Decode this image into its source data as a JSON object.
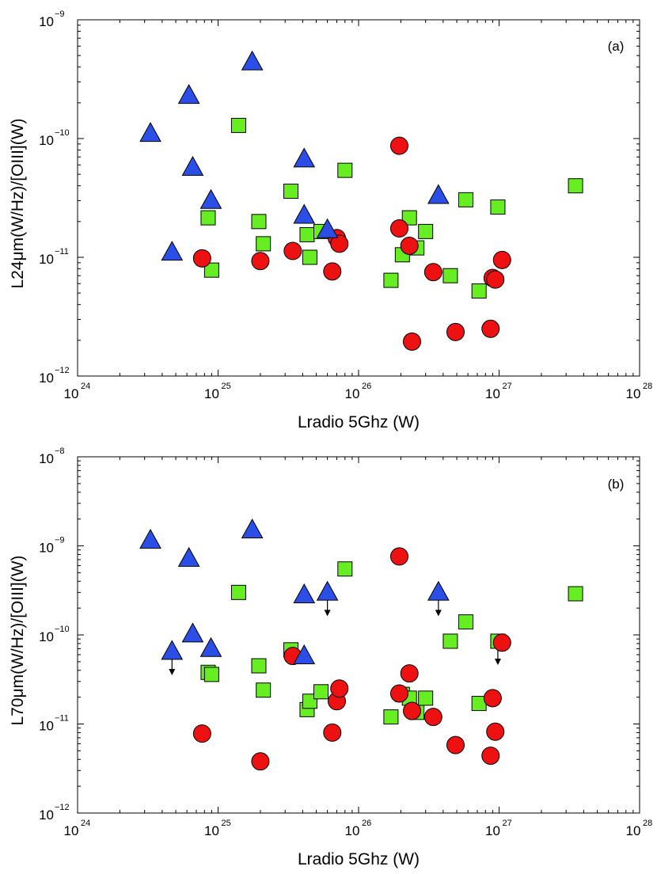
{
  "chart_data": [
    {
      "type": "scatter",
      "panel_label": "(a)",
      "xlabel": "Lradio 5Ghz (W)",
      "ylabel": "L24μm(W/Hz)/[OIII](W)",
      "xscale": "log",
      "yscale": "log",
      "xlim": [
        1e+24,
        1e+28
      ],
      "ylim": [
        1e-12,
        1e-09
      ],
      "xticks": [
        {
          "base": "10",
          "exp": "24",
          "v": 24
        },
        {
          "base": "10",
          "exp": "25",
          "v": 25
        },
        {
          "base": "10",
          "exp": "26",
          "v": 26
        },
        {
          "base": "10",
          "exp": "27",
          "v": 27
        },
        {
          "base": "10",
          "exp": "28",
          "v": 28
        }
      ],
      "yticks": [
        {
          "base": "10",
          "exp": "−12",
          "v": -12
        },
        {
          "base": "10",
          "exp": "−11",
          "v": -11
        },
        {
          "base": "10",
          "exp": "−10",
          "v": -10
        },
        {
          "base": "10",
          "exp": "−9",
          "v": -9
        }
      ],
      "series": [
        {
          "name": "triangles",
          "marker": "triangle",
          "color": "#2b4fe6",
          "points": [
            [
              3.3e+24,
              1.1e-10
            ],
            [
              4.7e+24,
              1.1e-11
            ],
            [
              6.2e+24,
              2.3e-10
            ],
            [
              6.6e+24,
              5.7e-11
            ],
            [
              8.9e+24,
              3e-11
            ],
            [
              1.75e+25,
              4.4e-10
            ],
            [
              4.1e+25,
              6.7e-11
            ],
            [
              4.1e+25,
              2.25e-11
            ],
            [
              6e+25,
              1.7e-11
            ],
            [
              3.7e+26,
              3.3e-11
            ]
          ]
        },
        {
          "name": "squares",
          "marker": "square",
          "color": "#66ee22",
          "points": [
            [
              8.5e+24,
              2.15e-11
            ],
            [
              9e+24,
              7.8e-12
            ],
            [
              1.4e+25,
              1.29e-10
            ],
            [
              1.95e+25,
              2e-11
            ],
            [
              2.1e+25,
              1.3e-11
            ],
            [
              3.3e+25,
              3.6e-11
            ],
            [
              4.3e+25,
              1.55e-11
            ],
            [
              4.5e+25,
              1e-11
            ],
            [
              5.4e+25,
              1.65e-11
            ],
            [
              8e+25,
              5.4e-11
            ],
            [
              1.7e+26,
              6.4e-12
            ],
            [
              2.05e+26,
              1.05e-11
            ],
            [
              2.3e+26,
              2.15e-11
            ],
            [
              2.6e+26,
              1.2e-11
            ],
            [
              3e+26,
              1.65e-11
            ],
            [
              4.5e+26,
              7e-12
            ],
            [
              5.8e+26,
              3.05e-11
            ],
            [
              7.2e+26,
              5.2e-12
            ],
            [
              9.8e+26,
              2.65e-11
            ],
            [
              3.5e+27,
              4e-11
            ]
          ]
        },
        {
          "name": "circles",
          "marker": "circle",
          "color": "#ee1111",
          "points": [
            [
              7.7e+24,
              9.8e-12
            ],
            [
              2e+25,
              9.3e-12
            ],
            [
              3.4e+25,
              1.13e-11
            ],
            [
              6.5e+25,
              7.6e-12
            ],
            [
              7e+25,
              1.45e-11
            ],
            [
              7.3e+25,
              1.3e-11
            ],
            [
              1.95e+26,
              8.7e-11
            ],
            [
              1.95e+26,
              1.75e-11
            ],
            [
              2.3e+26,
              1.25e-11
            ],
            [
              2.4e+26,
              1.95e-12
            ],
            [
              3.4e+26,
              7.5e-12
            ],
            [
              4.9e+26,
              2.35e-12
            ],
            [
              8.7e+26,
              2.5e-12
            ],
            [
              9e+26,
              6.7e-12
            ],
            [
              9.4e+26,
              6.5e-12
            ],
            [
              1.05e+27,
              9.5e-12
            ]
          ]
        }
      ]
    },
    {
      "type": "scatter",
      "panel_label": "(b)",
      "xlabel": "Lradio 5Ghz (W)",
      "ylabel": "L70μm(W/Hz)/[OIII](W)",
      "xscale": "log",
      "yscale": "log",
      "xlim": [
        1e+24,
        1e+28
      ],
      "ylim": [
        1e-12,
        1e-08
      ],
      "xticks": [
        {
          "base": "10",
          "exp": "24",
          "v": 24
        },
        {
          "base": "10",
          "exp": "25",
          "v": 25
        },
        {
          "base": "10",
          "exp": "26",
          "v": 26
        },
        {
          "base": "10",
          "exp": "27",
          "v": 27
        },
        {
          "base": "10",
          "exp": "28",
          "v": 28
        }
      ],
      "yticks": [
        {
          "base": "10",
          "exp": "−12",
          "v": -12
        },
        {
          "base": "10",
          "exp": "−11",
          "v": -11
        },
        {
          "base": "10",
          "exp": "−10",
          "v": -10
        },
        {
          "base": "10",
          "exp": "−9",
          "v": -9
        },
        {
          "base": "10",
          "exp": "−8",
          "v": -8
        }
      ],
      "series": [
        {
          "name": "triangles",
          "marker": "triangle",
          "color": "#2b4fe6",
          "points": [
            [
              3.3e+24,
              1.15e-09
            ],
            [
              4.7e+24,
              6.5e-11,
              "upper_limit"
            ],
            [
              6.2e+24,
              7.2e-10
            ],
            [
              6.6e+24,
              1.02e-10
            ],
            [
              8.9e+24,
              7e-11
            ],
            [
              1.75e+25,
              1.5e-09
            ],
            [
              4.1e+25,
              2.8e-10
            ],
            [
              4.1e+25,
              5.8e-11
            ],
            [
              6e+25,
              3e-10,
              "upper_limit"
            ],
            [
              3.7e+26,
              3e-10,
              "upper_limit"
            ]
          ]
        },
        {
          "name": "squares",
          "marker": "square",
          "color": "#66ee22",
          "points": [
            [
              8.5e+24,
              3.8e-11
            ],
            [
              9e+24,
              3.6e-11
            ],
            [
              1.4e+25,
              3e-10
            ],
            [
              1.95e+25,
              4.5e-11
            ],
            [
              2.1e+25,
              2.4e-11
            ],
            [
              3.3e+25,
              6.8e-11
            ],
            [
              4.3e+25,
              1.45e-11
            ],
            [
              4.5e+25,
              1.8e-11
            ],
            [
              5.4e+25,
              2.3e-11
            ],
            [
              8e+25,
              5.5e-10
            ],
            [
              1.7e+26,
              1.2e-11
            ],
            [
              2.05e+26,
              2.15e-11
            ],
            [
              2.3e+26,
              1.95e-11
            ],
            [
              2.6e+26,
              1.35e-11
            ],
            [
              3e+26,
              1.95e-11
            ],
            [
              4.5e+26,
              8.5e-11
            ],
            [
              5.8e+26,
              1.4e-10
            ],
            [
              7.2e+26,
              1.7e-11
            ],
            [
              9.8e+26,
              8.5e-11,
              "upper_limit"
            ],
            [
              3.5e+27,
              2.9e-10
            ]
          ]
        },
        {
          "name": "circles",
          "marker": "circle",
          "color": "#ee1111",
          "points": [
            [
              7.7e+24,
              7.8e-12
            ],
            [
              2e+25,
              3.8e-12
            ],
            [
              3.4e+25,
              5.8e-11
            ],
            [
              6.5e+25,
              8e-12
            ],
            [
              7e+25,
              1.8e-11
            ],
            [
              7.3e+25,
              2.5e-11
            ],
            [
              1.95e+26,
              7.6e-10
            ],
            [
              1.95e+26,
              2.2e-11
            ],
            [
              2.3e+26,
              3.7e-11
            ],
            [
              2.4e+26,
              1.4e-11
            ],
            [
              3.4e+26,
              1.2e-11
            ],
            [
              4.9e+26,
              5.8e-12
            ],
            [
              8.7e+26,
              4.4e-12
            ],
            [
              9e+26,
              1.95e-11
            ],
            [
              9.4e+26,
              8.2e-12
            ],
            [
              1.05e+27,
              8.2e-11
            ]
          ]
        }
      ]
    }
  ]
}
